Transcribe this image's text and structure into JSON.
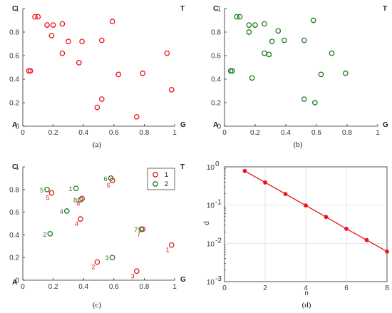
{
  "colors": {
    "red": "#e8141c",
    "green": "#1a7d1a",
    "axis": "#262626",
    "line": "#e8141c"
  },
  "chart_data": [
    {
      "id": "a",
      "type": "scatter",
      "caption": "(a)",
      "corners": {
        "top_left": "C",
        "top_right": "T",
        "bottom_left": "A",
        "bottom_right": "G"
      },
      "xlim": [
        0,
        1
      ],
      "ylim": [
        0,
        1
      ],
      "xticks": [
        "0",
        "0.2",
        "0.4",
        "0.6",
        "0.8",
        "1"
      ],
      "yticks": [
        "0",
        "0.2",
        "0.4",
        "0.6",
        "0.8",
        "1"
      ],
      "series": [
        {
          "color": "red",
          "points": [
            [
              0.04,
              0.47
            ],
            [
              0.05,
              0.47
            ],
            [
              0.08,
              0.93
            ],
            [
              0.1,
              0.93
            ],
            [
              0.16,
              0.86
            ],
            [
              0.19,
              0.77
            ],
            [
              0.2,
              0.86
            ],
            [
              0.26,
              0.87
            ],
            [
              0.26,
              0.62
            ],
            [
              0.3,
              0.72
            ],
            [
              0.37,
              0.54
            ],
            [
              0.39,
              0.72
            ],
            [
              0.49,
              0.16
            ],
            [
              0.52,
              0.23
            ],
            [
              0.52,
              0.73
            ],
            [
              0.59,
              0.89
            ],
            [
              0.63,
              0.44
            ],
            [
              0.75,
              0.08
            ],
            [
              0.79,
              0.45
            ],
            [
              0.95,
              0.62
            ],
            [
              0.98,
              0.31
            ]
          ]
        }
      ]
    },
    {
      "id": "b",
      "type": "scatter",
      "caption": "(b)",
      "corners": {
        "top_left": "C",
        "top_right": "T",
        "bottom_left": "A",
        "bottom_right": "G"
      },
      "xlim": [
        0,
        1
      ],
      "ylim": [
        0,
        1
      ],
      "xticks": [
        "0",
        "0.2",
        "0.4",
        "0.6",
        "0.8",
        "1"
      ],
      "yticks": [
        "0",
        "0.2",
        "0.4",
        "0.6",
        "0.8",
        "1"
      ],
      "series": [
        {
          "color": "green",
          "points": [
            [
              0.04,
              0.47
            ],
            [
              0.05,
              0.47
            ],
            [
              0.08,
              0.93
            ],
            [
              0.1,
              0.93
            ],
            [
              0.16,
              0.8
            ],
            [
              0.16,
              0.86
            ],
            [
              0.18,
              0.41
            ],
            [
              0.2,
              0.86
            ],
            [
              0.26,
              0.87
            ],
            [
              0.26,
              0.62
            ],
            [
              0.29,
              0.61
            ],
            [
              0.31,
              0.72
            ],
            [
              0.35,
              0.81
            ],
            [
              0.39,
              0.73
            ],
            [
              0.52,
              0.23
            ],
            [
              0.52,
              0.73
            ],
            [
              0.58,
              0.9
            ],
            [
              0.59,
              0.2
            ],
            [
              0.63,
              0.44
            ],
            [
              0.7,
              0.62
            ],
            [
              0.79,
              0.45
            ]
          ]
        }
      ]
    },
    {
      "id": "c",
      "type": "scatter",
      "caption": "(c)",
      "corners": {
        "top_left": "C",
        "top_right": "T",
        "bottom_left": "A",
        "bottom_right": "G"
      },
      "xlim": [
        0,
        1
      ],
      "ylim": [
        0,
        1
      ],
      "xticks": [
        "0",
        "0.2",
        "0.4",
        "0.6",
        "0.8",
        "1"
      ],
      "yticks": [
        "0",
        "0.2",
        "0.4",
        "0.6",
        "0.8",
        "1"
      ],
      "legend": {
        "position": "top-right",
        "entries": [
          "1",
          "2"
        ]
      },
      "series": [
        {
          "name": "1",
          "color": "red",
          "points": [
            {
              "x": 0.98,
              "y": 0.31,
              "label": "1"
            },
            {
              "x": 0.49,
              "y": 0.16,
              "label": "2"
            },
            {
              "x": 0.75,
              "y": 0.08,
              "label": "3"
            },
            {
              "x": 0.38,
              "y": 0.54,
              "label": "4"
            },
            {
              "x": 0.19,
              "y": 0.77,
              "label": "5"
            },
            {
              "x": 0.59,
              "y": 0.88,
              "label": "6"
            },
            {
              "x": 0.79,
              "y": 0.45,
              "label": "7"
            },
            {
              "x": 0.39,
              "y": 0.72,
              "label": "8"
            }
          ]
        },
        {
          "name": "2",
          "color": "green",
          "points": [
            {
              "x": 0.35,
              "y": 0.81,
              "label": "1"
            },
            {
              "x": 0.18,
              "y": 0.41,
              "label": "2"
            },
            {
              "x": 0.59,
              "y": 0.2,
              "label": "3"
            },
            {
              "x": 0.29,
              "y": 0.61,
              "label": "4"
            },
            {
              "x": 0.16,
              "y": 0.8,
              "label": "5"
            },
            {
              "x": 0.58,
              "y": 0.9,
              "label": "6"
            },
            {
              "x": 0.78,
              "y": 0.45,
              "label": "7"
            },
            {
              "x": 0.38,
              "y": 0.71,
              "label": "8"
            }
          ]
        }
      ]
    },
    {
      "id": "d",
      "type": "line",
      "caption": "(d)",
      "xlabel": "n",
      "ylabel": "d",
      "xlim": [
        0,
        8
      ],
      "ylim": [
        0.001,
        1
      ],
      "yscale": "log",
      "xticks": [
        "0",
        "2",
        "4",
        "6",
        "8"
      ],
      "yticks": [
        "10",
        "10",
        "10",
        "10"
      ],
      "ytick_exponents": [
        "0",
        "-1",
        "-2",
        "-3"
      ],
      "series": [
        {
          "color": "red",
          "x": [
            1,
            2,
            3,
            4,
            5,
            6,
            7,
            8
          ],
          "y": [
            0.78,
            0.39,
            0.195,
            0.098,
            0.049,
            0.024,
            0.0122,
            0.0061
          ]
        }
      ]
    }
  ]
}
